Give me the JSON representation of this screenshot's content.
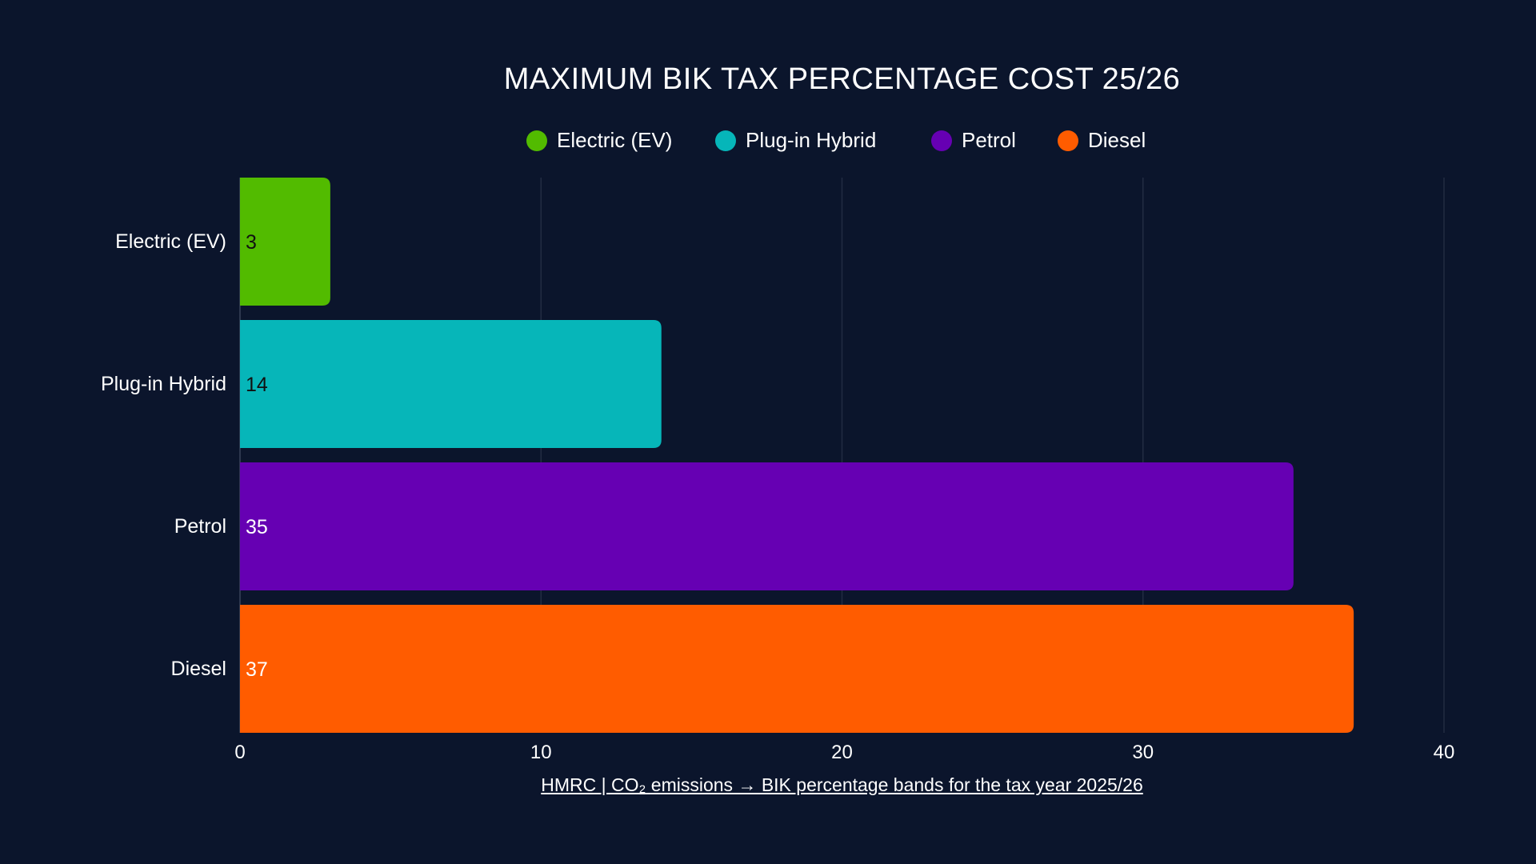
{
  "chart_data": {
    "type": "bar",
    "orientation": "horizontal",
    "title": "MAXIMUM BIK TAX PERCENTAGE COST 25/26",
    "categories": [
      "Electric (EV)",
      "Plug-in Hybrid",
      "Petrol",
      "Diesel"
    ],
    "values": [
      3,
      14,
      35,
      37
    ],
    "colors": [
      "#52bb00",
      "#06b6b9",
      "#6600b3",
      "#ff5c00"
    ],
    "value_label_colors": [
      "#111111",
      "#111111",
      "#ffffff",
      "#ffffff"
    ],
    "legend": [
      "Electric (EV)",
      "Plug-in Hybrid",
      "Petrol",
      "Diesel"
    ],
    "legend_position": "top",
    "xlim": [
      0,
      40
    ],
    "xticks": [
      "0",
      "10",
      "20",
      "30",
      "40"
    ],
    "grid": true,
    "xlabel": "",
    "ylabel": "",
    "footnote": "HMRC | CO₂ emissions → BIK percentage bands for the tax year 2025/26"
  },
  "background": "#0b152c"
}
